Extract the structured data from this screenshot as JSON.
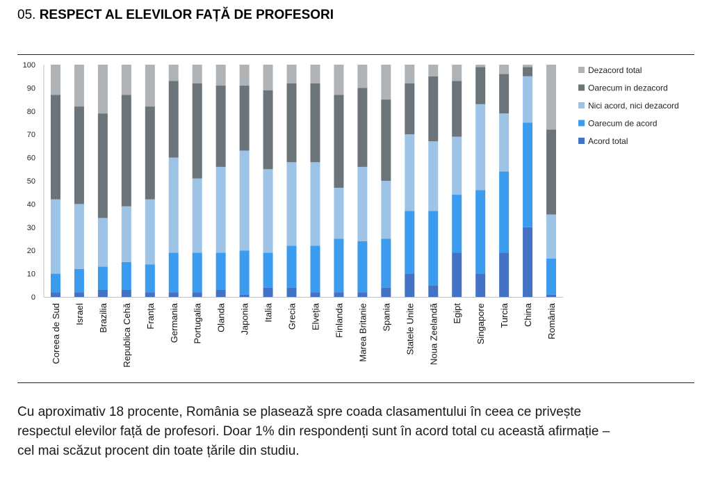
{
  "header": {
    "number": "05.",
    "title": "RESPECT AL ELEVILOR FAȚĂ DE PROFESORI"
  },
  "caption": {
    "lines": [
      "Cu aproximativ 18 procente, România se plasează spre coada clasamentului în ceea ce privește",
      "respectul elevilor față de profesori. Doar 1% din respondenți sunt în acord total cu această afirmație –",
      "cel mai scăzut procent din toate țările din studiu."
    ]
  },
  "chart_data": {
    "type": "bar",
    "stacked": true,
    "categories": [
      "Coreea de Sud",
      "Israel",
      "Brazilia",
      "Republica Cehă",
      "Franța",
      "Germania",
      "Portugalia",
      "Olanda",
      "Japonia",
      "Italia",
      "Grecia",
      "Elveția",
      "Finlanda",
      "Marea Britanie",
      "Spania",
      "Statele Unite",
      "Noua Zeelandă",
      "Egipt",
      "Singapore",
      "Turcia",
      "China",
      "România"
    ],
    "ylim": [
      0,
      100
    ],
    "yticks": [
      0,
      10,
      20,
      30,
      40,
      50,
      60,
      70,
      80,
      90,
      100
    ],
    "grid": false,
    "legend_position": "right",
    "series": [
      {
        "name": "Acord total",
        "color": "#4472c4",
        "values": [
          2,
          2,
          3,
          3,
          2,
          2,
          2,
          3,
          1,
          4,
          4,
          2,
          2,
          2,
          4,
          10,
          5,
          19,
          10,
          19,
          30,
          1
        ]
      },
      {
        "name": "Oarecum de acord",
        "color": "#3b9bef",
        "values": [
          8,
          10,
          10,
          12,
          12,
          17,
          17,
          16,
          19,
          15,
          18,
          20,
          23,
          22,
          21,
          27,
          32,
          25,
          36,
          35,
          45,
          15.5
        ]
      },
      {
        "name": "Nici acord, nici dezacord",
        "color": "#9dc3e6",
        "values": [
          32,
          28,
          21,
          24,
          28,
          41,
          32,
          37,
          43,
          36,
          36,
          36,
          22,
          32,
          25,
          33,
          30,
          25,
          37,
          25,
          20,
          19
        ]
      },
      {
        "name": "Oarecum in dezacord",
        "color": "#6b7479",
        "values": [
          45,
          42,
          45,
          48,
          40,
          33,
          41,
          35,
          28,
          34,
          34,
          34,
          40,
          34,
          35,
          22,
          28,
          24,
          16,
          17,
          4,
          36.5
        ]
      },
      {
        "name": "Dezacord total",
        "color": "#b0b3b6",
        "values": [
          13,
          18,
          21,
          13,
          18,
          7,
          8,
          9,
          9,
          11,
          8,
          8,
          13,
          10,
          15,
          8,
          5,
          7,
          1,
          4,
          1,
          28
        ]
      }
    ]
  }
}
